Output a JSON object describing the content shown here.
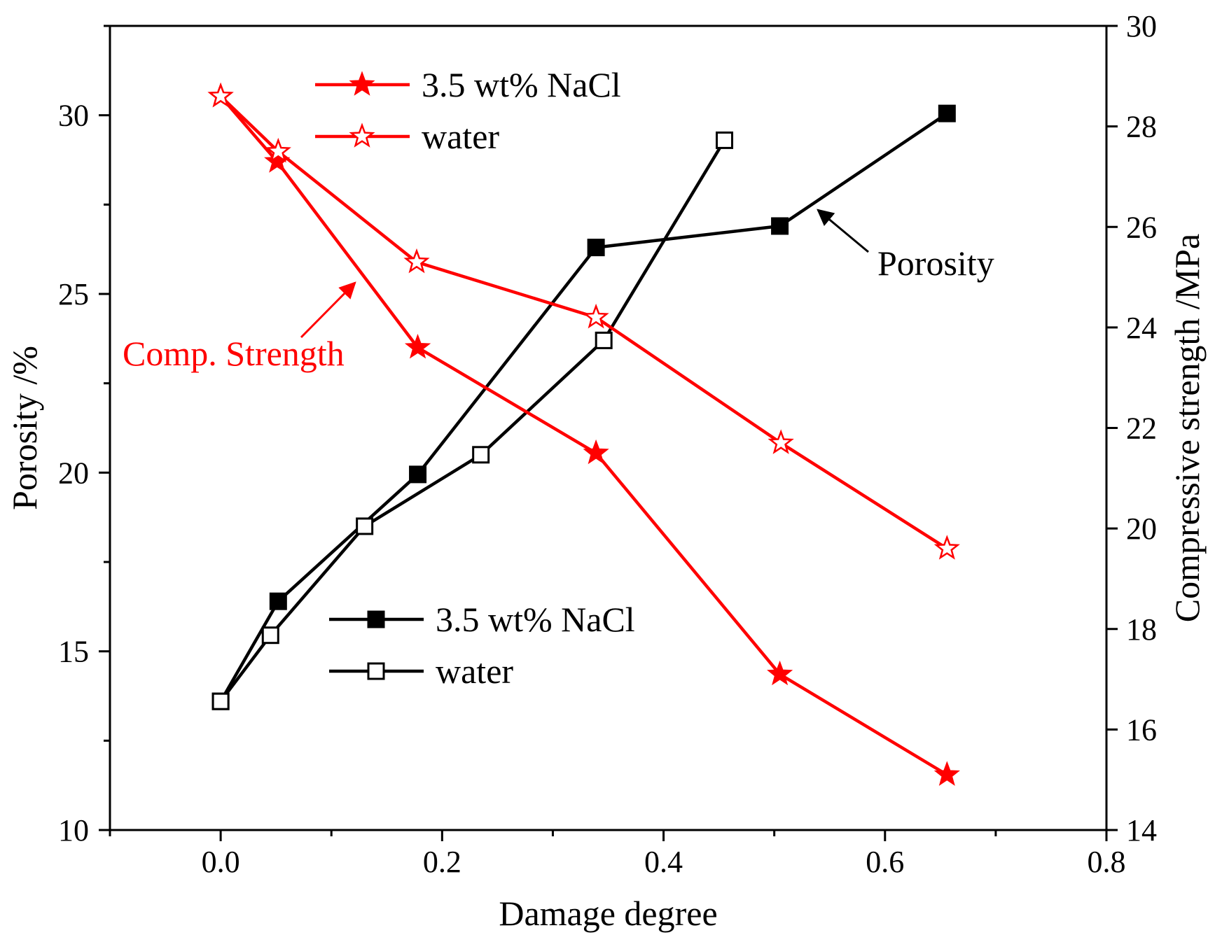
{
  "chart_data": {
    "type": "line",
    "xlabel": "Damage degree",
    "ylabel_left": "Porosity /%",
    "ylabel_right": "Compressive strength /MPa",
    "xlim": [
      -0.1,
      0.8
    ],
    "ylim_left": [
      10,
      32.5
    ],
    "ylim_right": [
      14,
      30
    ],
    "x_ticks": [
      0.0,
      0.2,
      0.4,
      0.6,
      0.8
    ],
    "x_tick_labels": [
      "0.0",
      "0.2",
      "0.4",
      "0.6",
      "0.8"
    ],
    "y_left_ticks": [
      10,
      15,
      20,
      25,
      30
    ],
    "y_left_tick_labels": [
      "10",
      "15",
      "20",
      "25",
      "30"
    ],
    "y_right_ticks": [
      14,
      16,
      18,
      20,
      22,
      24,
      26,
      28,
      30
    ],
    "y_right_tick_labels": [
      "14",
      "16",
      "18",
      "20",
      "22",
      "24",
      "26",
      "28",
      "30"
    ],
    "series": [
      {
        "id": "porosity-nacl",
        "name": "3.5 wt% NaCl",
        "axis": "left",
        "color": "#000000",
        "marker": "square-filled",
        "points": [
          [
            0.0,
            13.6
          ],
          [
            0.052,
            16.4
          ],
          [
            0.178,
            19.95
          ],
          [
            0.339,
            26.3
          ],
          [
            0.505,
            26.9
          ],
          [
            0.656,
            30.05
          ]
        ]
      },
      {
        "id": "porosity-water",
        "name": "water",
        "axis": "left",
        "color": "#000000",
        "marker": "square-open",
        "points": [
          [
            0.0,
            13.6
          ],
          [
            0.045,
            15.45
          ],
          [
            0.13,
            18.5
          ],
          [
            0.235,
            20.5
          ],
          [
            0.346,
            23.7
          ],
          [
            0.455,
            29.3
          ]
        ]
      },
      {
        "id": "strength-nacl",
        "name": "3.5 wt% NaCl",
        "axis": "right",
        "color": "#ff0000",
        "marker": "star-filled",
        "points": [
          [
            0.0,
            28.6
          ],
          [
            0.051,
            27.3
          ],
          [
            0.178,
            23.6
          ],
          [
            0.339,
            21.5
          ],
          [
            0.505,
            17.1
          ],
          [
            0.656,
            15.1
          ]
        ]
      },
      {
        "id": "strength-water",
        "name": "water",
        "axis": "right",
        "color": "#ff0000",
        "marker": "star-open",
        "points": [
          [
            0.0,
            28.6
          ],
          [
            0.052,
            27.5
          ],
          [
            0.177,
            25.3
          ],
          [
            0.339,
            24.2
          ],
          [
            0.506,
            21.7
          ],
          [
            0.656,
            19.6
          ]
        ]
      }
    ],
    "legends": [
      {
        "id": "legend-strength",
        "placement": "top-left",
        "entries": [
          {
            "series": "strength-nacl",
            "label": "3.5 wt% NaCl"
          },
          {
            "series": "strength-water",
            "label": "water"
          }
        ]
      },
      {
        "id": "legend-porosity",
        "placement": "lower-center",
        "entries": [
          {
            "series": "porosity-nacl",
            "label": "3.5 wt% NaCl"
          },
          {
            "series": "porosity-water",
            "label": "water"
          }
        ]
      }
    ],
    "annotations": [
      {
        "id": "porosity-annotation",
        "text": "Porosity",
        "color": "#000000",
        "points_to": "porosity-nacl",
        "target": [
          0.535,
          26.3
        ]
      },
      {
        "id": "strength-annotation",
        "text": "Comp. Strength",
        "color": "#ff0000",
        "points_to": "strength-nacl",
        "target": [
          0.123,
          24.8
        ]
      }
    ],
    "grid": false
  }
}
